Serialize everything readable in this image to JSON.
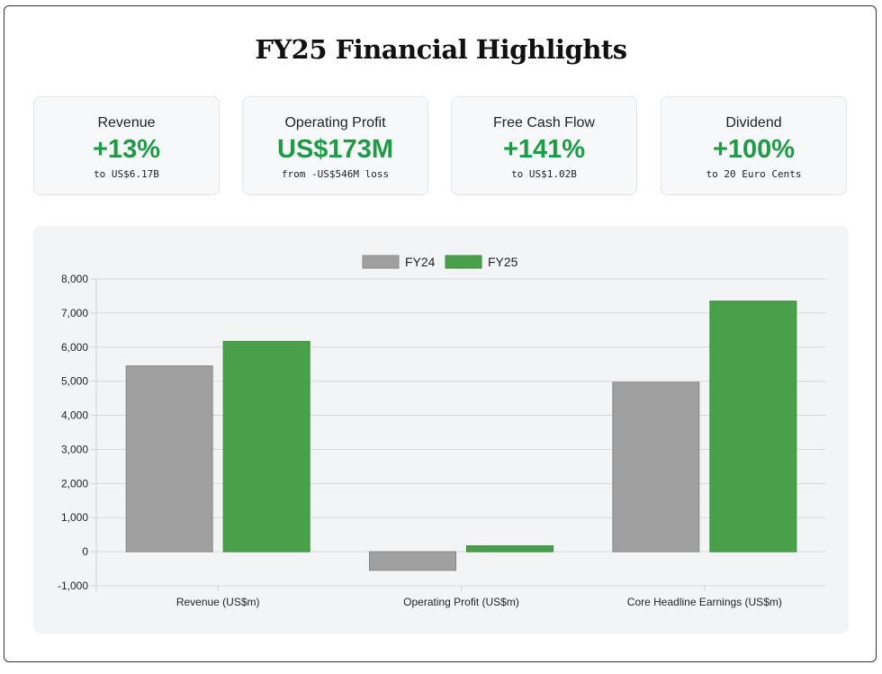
{
  "page": {
    "title": "FY25 Financial Highlights"
  },
  "cards": [
    {
      "label": "Revenue",
      "value": "+13%",
      "sub": "to US$6.17B"
    },
    {
      "label": "Operating Profit",
      "value": "US$173M",
      "sub": "from -US$546M loss"
    },
    {
      "label": "Free Cash Flow",
      "value": "+141%",
      "sub": "to US$1.02B"
    },
    {
      "label": "Dividend",
      "value": "+100%",
      "sub": "to 20 Euro Cents"
    }
  ],
  "colors": {
    "fy24": "#a0a0a0",
    "fy25": "#4aa04a",
    "accent": "#1e9b45"
  },
  "chart_data": {
    "type": "bar",
    "title": "",
    "categories": [
      "Revenue (US$m)",
      "Operating Profit (US$m)",
      "Core Headline Earnings (US$m)"
    ],
    "series": [
      {
        "name": "FY24",
        "values": [
          5450,
          -546,
          4970
        ]
      },
      {
        "name": "FY25",
        "values": [
          6170,
          173,
          7350
        ]
      }
    ],
    "ylim": [
      -1000,
      8000
    ],
    "yticks": [
      8000,
      7000,
      6000,
      5000,
      4000,
      3000,
      2000,
      1000,
      0,
      -1000
    ],
    "ytick_labels": [
      "8,000",
      "7,000",
      "6,000",
      "5,000",
      "4,000",
      "3,000",
      "2,000",
      "1,000",
      "0",
      "-1,000"
    ],
    "legend": "top-center",
    "grid": true
  }
}
